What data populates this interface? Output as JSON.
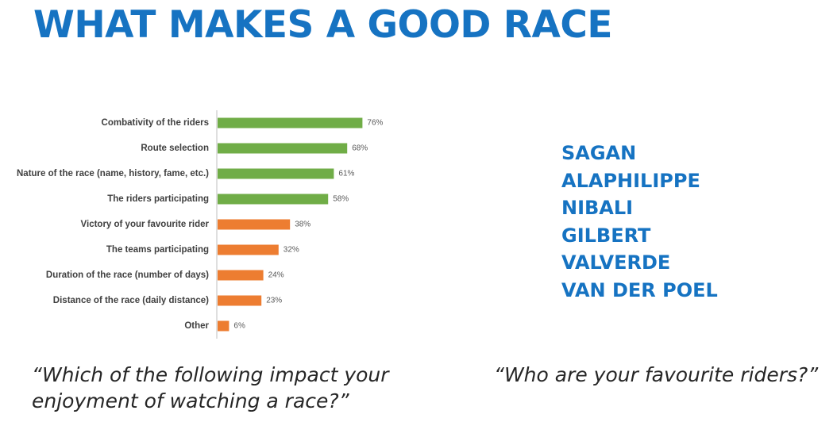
{
  "title": "WHAT MAKES A GOOD RACE",
  "chart_data": {
    "type": "bar",
    "orientation": "horizontal",
    "categories": [
      "Combativity of the riders",
      "Route selection",
      "Nature of the race (name, history, fame, etc.)",
      "The riders participating",
      "Victory of your favourite rider",
      "The teams participating",
      "Duration of the race (number of days)",
      "Distance of the race (daily distance)",
      "Other"
    ],
    "values": [
      76,
      68,
      61,
      58,
      38,
      32,
      24,
      23,
      6
    ],
    "value_labels": [
      "76%",
      "68%",
      "61%",
      "58%",
      "38%",
      "32%",
      "24%",
      "23%",
      "6%"
    ],
    "bar_colors": [
      "#70ad47",
      "#70ad47",
      "#70ad47",
      "#70ad47",
      "#ed7d31",
      "#ed7d31",
      "#ed7d31",
      "#ed7d31",
      "#ed7d31"
    ],
    "xlim": [
      0,
      100
    ],
    "title": "",
    "xlabel": "",
    "ylabel": "",
    "grid": false
  },
  "riders": {
    "items": [
      "SAGAN",
      "ALAPHILIPPE",
      "NIBALI",
      "GILBERT",
      "VALVERDE",
      "VAN DER POEL"
    ]
  },
  "questions": {
    "q1": "“Which of the following impact your enjoyment of watching a race?”",
    "q2": "“Who are your favourite riders?”"
  }
}
